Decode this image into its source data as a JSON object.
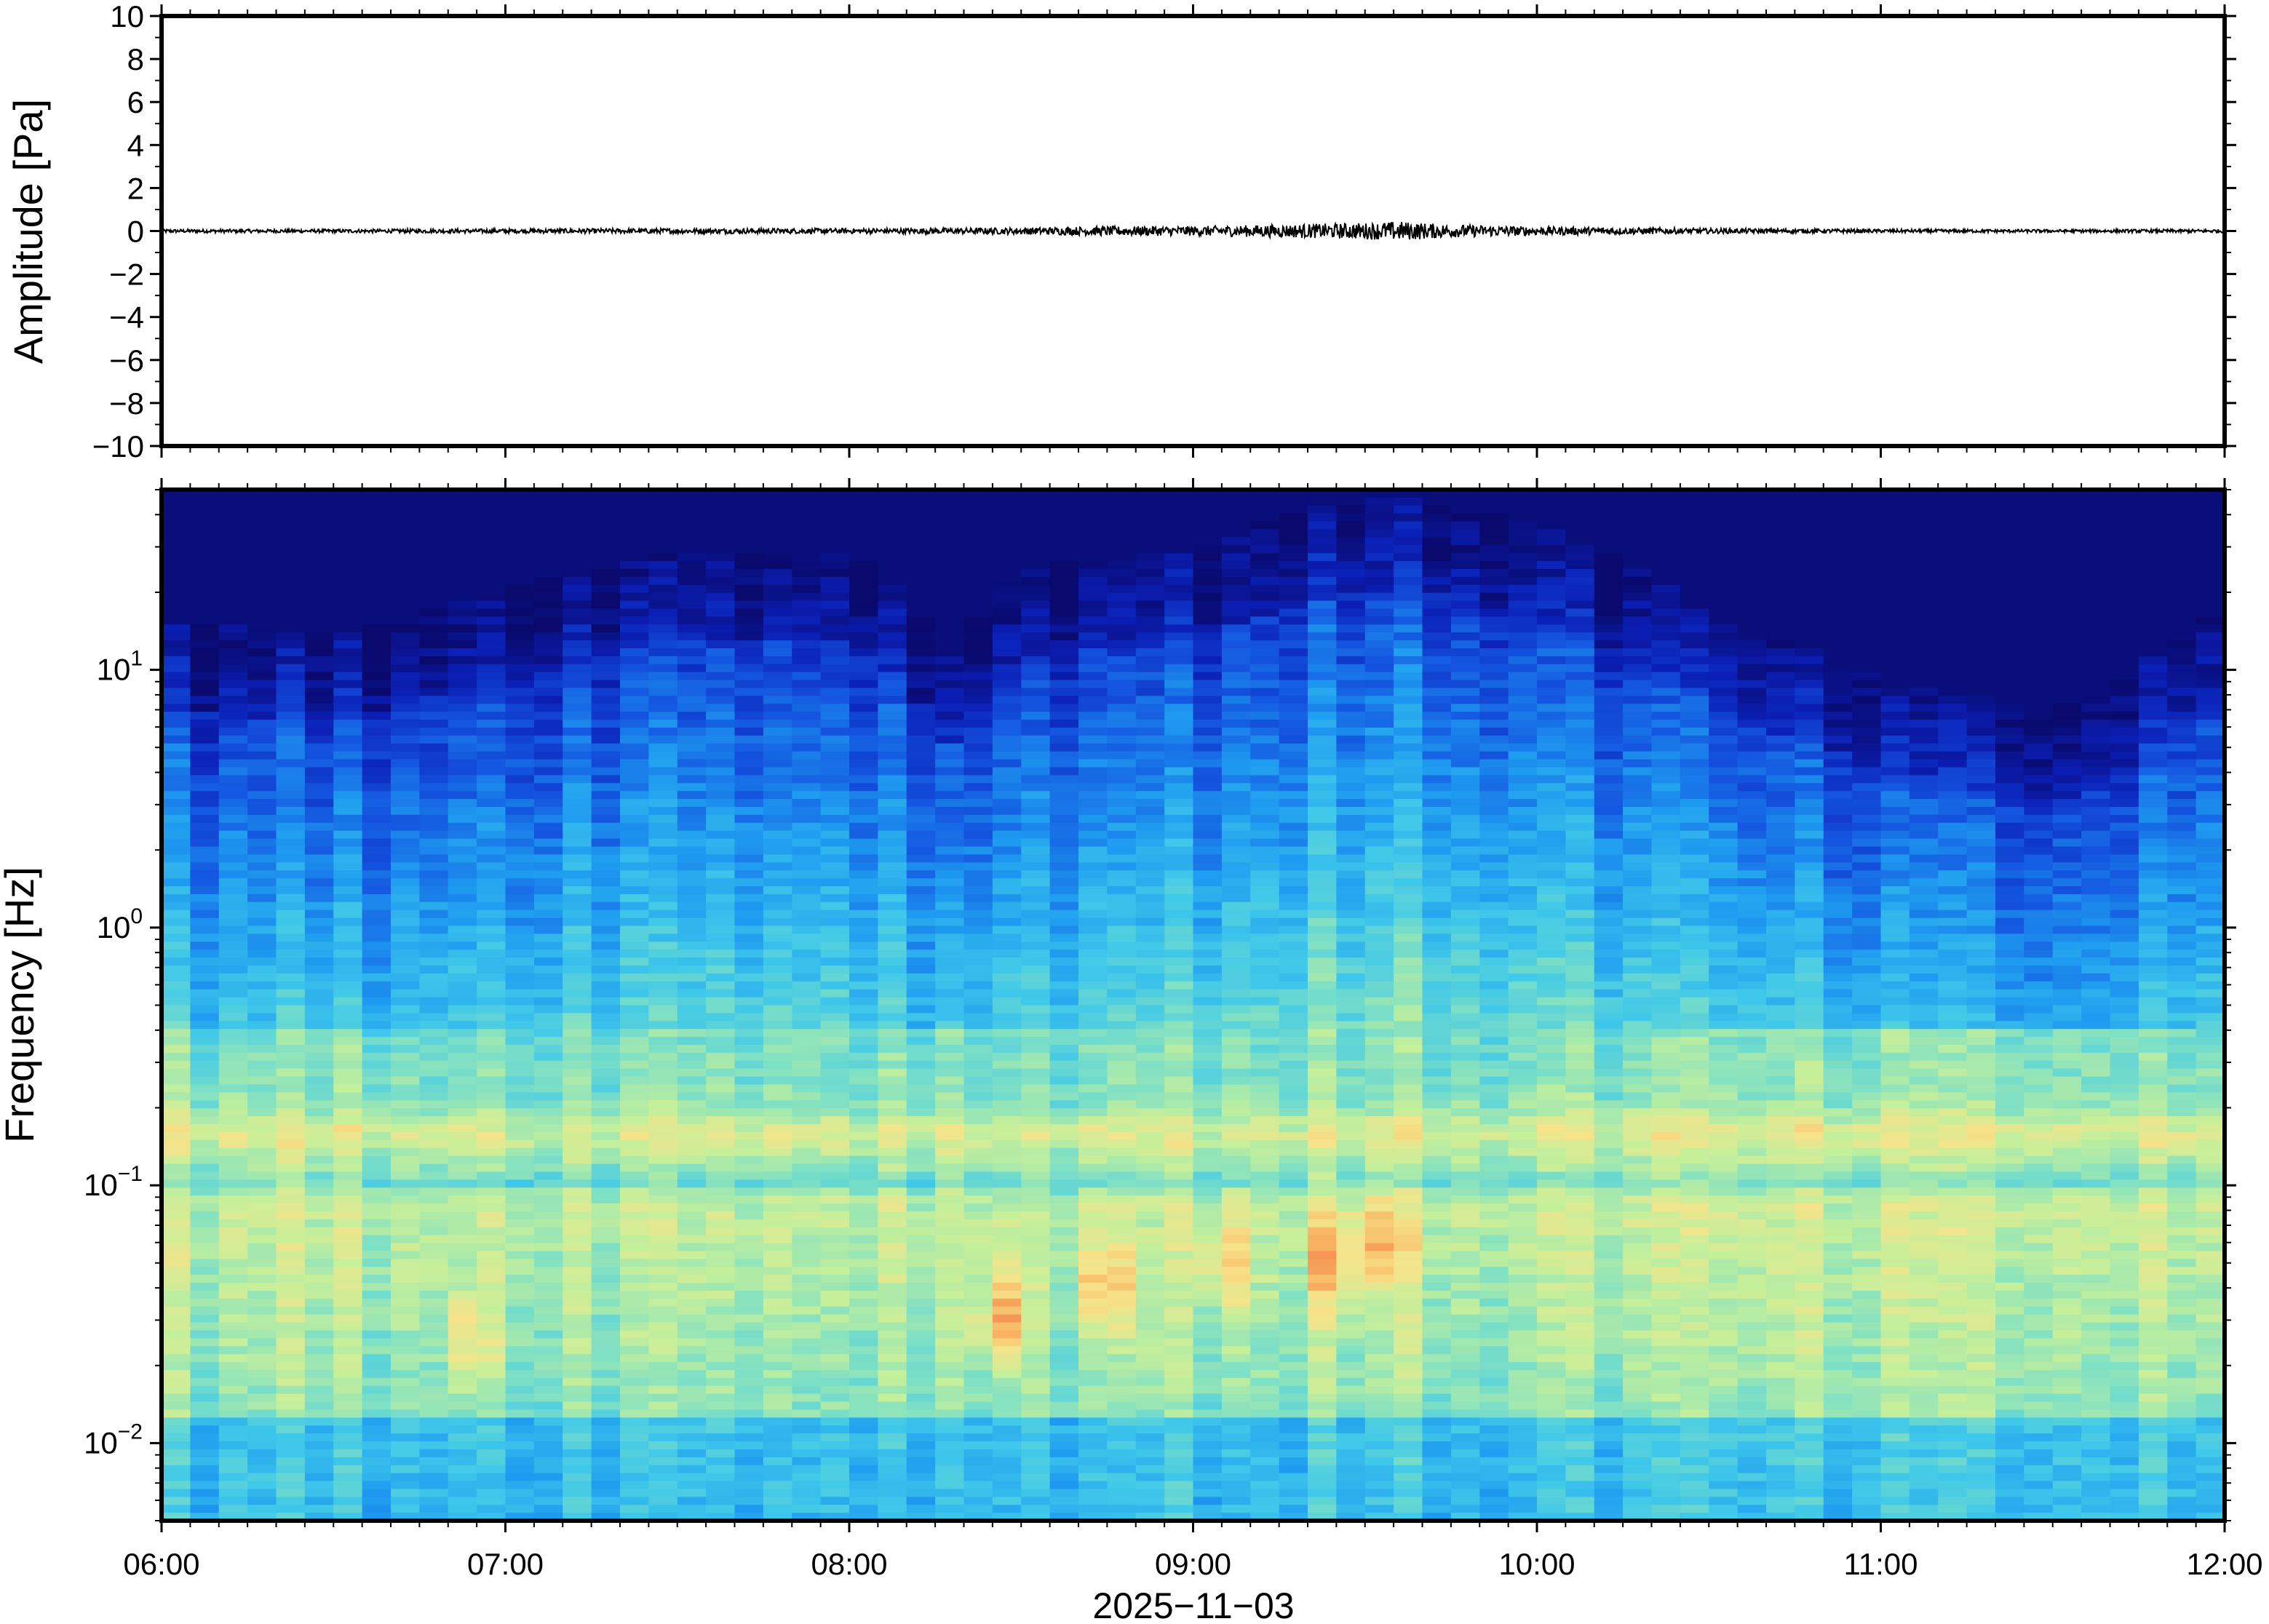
{
  "chart_data": [
    {
      "type": "line",
      "title": "",
      "ylabel": "Amplitude [Pa]",
      "xlabel": "",
      "ylim": [
        -10,
        10
      ],
      "yticks": [
        -10,
        -8,
        -6,
        -4,
        -2,
        0,
        2,
        4,
        6,
        8,
        10
      ],
      "ytick_labels": [
        "−10",
        "−8",
        "−6",
        "−4",
        "−2",
        "0",
        "2",
        "4",
        "6",
        "8",
        "10"
      ],
      "xlim": [
        "06:00",
        "12:00"
      ],
      "line_color": "#000000",
      "series": [
        {
          "x_hours": [
            6.0,
            6.5,
            7.0,
            7.5,
            8.0,
            8.5,
            8.75,
            9.0,
            9.25,
            9.5,
            9.6,
            9.75,
            10.0,
            10.5,
            11.0,
            11.5,
            12.0
          ],
          "envelope": [
            0.08,
            0.08,
            0.1,
            0.12,
            0.12,
            0.15,
            0.22,
            0.22,
            0.3,
            0.38,
            0.45,
            0.3,
            0.2,
            0.12,
            0.08,
            0.07,
            0.08
          ]
        }
      ]
    },
    {
      "type": "heatmap",
      "title": "",
      "ylabel": "Frequency [Hz]",
      "xlabel": "2025−11−03",
      "yscale": "log",
      "ylim": [
        0.005,
        50
      ],
      "yticks": [
        0.01,
        0.1,
        1,
        10
      ],
      "ytick_labels": [
        {
          "base": "10",
          "exp": "−2"
        },
        {
          "base": "10",
          "exp": "−1"
        },
        {
          "base": "10",
          "exp": "0"
        },
        {
          "base": "10",
          "exp": "1"
        }
      ],
      "xlim": [
        "06:00",
        "12:00"
      ],
      "xticks": [
        "06:00",
        "07:00",
        "08:00",
        "09:00",
        "10:00",
        "11:00",
        "12:00"
      ],
      "colormap": [
        "#0a0a6e",
        "#0b1fb5",
        "#1456e0",
        "#1e9bf0",
        "#3fc8ea",
        "#7fe0c4",
        "#c6ef9a",
        "#f6e38a",
        "#f9b865",
        "#f27b4a"
      ],
      "noise_ceiling_hz": [
        {
          "hour": 6.0,
          "hz": 7
        },
        {
          "hour": 6.5,
          "hz": 6
        },
        {
          "hour": 7.0,
          "hz": 9
        },
        {
          "hour": 7.5,
          "hz": 13
        },
        {
          "hour": 8.0,
          "hz": 13
        },
        {
          "hour": 8.3,
          "hz": 5
        },
        {
          "hour": 8.5,
          "hz": 11
        },
        {
          "hour": 9.0,
          "hz": 13
        },
        {
          "hour": 9.3,
          "hz": 18
        },
        {
          "hour": 9.6,
          "hz": 21
        },
        {
          "hour": 10.0,
          "hz": 16
        },
        {
          "hour": 10.5,
          "hz": 7
        },
        {
          "hour": 11.0,
          "hz": 4
        },
        {
          "hour": 11.5,
          "hz": 3
        },
        {
          "hour": 11.7,
          "hz": 4
        },
        {
          "hour": 12.0,
          "hz": 8
        }
      ],
      "hot_spots": [
        {
          "hour": 8.45,
          "hz": 0.03,
          "level": 0.9
        },
        {
          "hour": 8.75,
          "hz": 0.04,
          "level": 0.85
        },
        {
          "hour": 9.1,
          "hz": 0.05,
          "level": 0.8
        },
        {
          "hour": 9.4,
          "hz": 0.05,
          "level": 0.85
        },
        {
          "hour": 9.55,
          "hz": 0.06,
          "level": 0.82
        },
        {
          "hour": 6.9,
          "hz": 0.025,
          "level": 0.78
        }
      ]
    }
  ]
}
